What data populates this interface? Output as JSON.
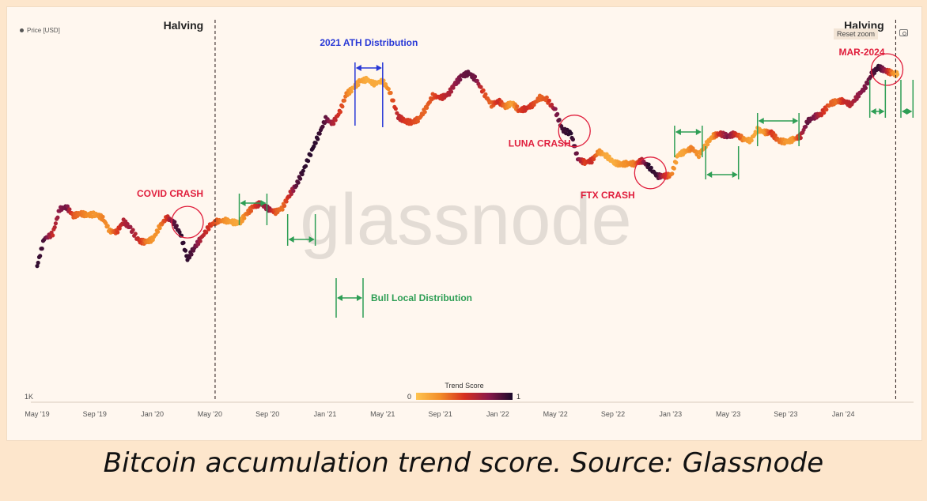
{
  "chart_data": {
    "type": "scatter",
    "series_legend": "Price [USD]",
    "y_axis_label": "1K",
    "x_ticks": [
      "May '19",
      "Sep '19",
      "Jan '20",
      "May '20",
      "Sep '20",
      "Jan '21",
      "May '21",
      "Sep '21",
      "Jan '22",
      "May '22",
      "Sep '22",
      "Jan '23",
      "May '23",
      "Sep '23",
      "Jan '24"
    ],
    "colorbar": {
      "title": "Trend Score",
      "min": 0,
      "max": 1,
      "colors": [
        "#fec44f",
        "#f28c28",
        "#d7301f",
        "#8b1a4a",
        "#1b0a2a"
      ]
    },
    "x": [
      2019.33,
      2019.37,
      2019.42,
      2019.46,
      2019.5,
      2019.54,
      2019.58,
      2019.62,
      2019.67,
      2019.71,
      2019.75,
      2019.79,
      2019.83,
      2019.87,
      2019.92,
      2019.96,
      2020.0,
      2020.04,
      2020.08,
      2020.12,
      2020.16,
      2020.2,
      2020.24,
      2020.28,
      2020.33,
      2020.37,
      2020.42,
      2020.46,
      2020.5,
      2020.54,
      2020.58,
      2020.62,
      2020.67,
      2020.71,
      2020.75,
      2020.79,
      2020.83,
      2020.87,
      2020.92,
      2020.96,
      2021.0,
      2021.04,
      2021.08,
      2021.12,
      2021.16,
      2021.2,
      2021.24,
      2021.28,
      2021.33,
      2021.37,
      2021.42,
      2021.46,
      2021.5,
      2021.54,
      2021.58,
      2021.62,
      2021.67,
      2021.71,
      2021.75,
      2021.79,
      2021.83,
      2021.87,
      2021.92,
      2021.96,
      2022.0,
      2022.04,
      2022.08,
      2022.12,
      2022.16,
      2022.2,
      2022.24,
      2022.28,
      2022.33,
      2022.37,
      2022.42,
      2022.46,
      2022.5,
      2022.54,
      2022.58,
      2022.62,
      2022.67,
      2022.71,
      2022.75,
      2022.79,
      2022.83,
      2022.87,
      2022.92,
      2022.96,
      2023.0,
      2023.04,
      2023.08,
      2023.12,
      2023.16,
      2023.2,
      2023.24,
      2023.28,
      2023.33,
      2023.37,
      2023.42,
      2023.46,
      2023.5,
      2023.54,
      2023.58,
      2023.62,
      2023.67,
      2023.71,
      2023.75,
      2023.79,
      2023.83,
      2023.87,
      2023.92,
      2023.96,
      2024.0,
      2024.04,
      2024.08,
      2024.12,
      2024.16,
      2024.2,
      2024.24,
      2024.28,
      2024.31
    ],
    "y": [
      5.3,
      7.5,
      8.0,
      11.0,
      11.3,
      10.1,
      10.4,
      10.2,
      10.3,
      9.8,
      8.3,
      8.2,
      9.4,
      8.6,
      7.3,
      7.2,
      7.5,
      8.8,
      9.9,
      9.3,
      8.0,
      5.8,
      6.7,
      7.6,
      8.9,
      9.4,
      9.5,
      9.3,
      9.2,
      10.3,
      11.3,
      11.8,
      11.0,
      10.6,
      11.2,
      13.2,
      15.0,
      18.0,
      23.4,
      28.5,
      35.0,
      33.0,
      38.0,
      48.0,
      52.0,
      57.0,
      58.0,
      55.0,
      57.0,
      50.0,
      36.0,
      34.0,
      33.5,
      35.0,
      40.0,
      47.0,
      46.0,
      48.0,
      55.0,
      61.0,
      63.0,
      58.0,
      48.0,
      42.0,
      44.0,
      41.0,
      43.0,
      39.0,
      40.0,
      42.0,
      46.0,
      45.0,
      39.0,
      30.5,
      29.0,
      21.0,
      20.0,
      20.5,
      23.0,
      22.0,
      20.0,
      19.5,
      19.8,
      19.7,
      20.5,
      19.0,
      16.8,
      16.8,
      17.0,
      22.0,
      23.0,
      24.0,
      22.0,
      25.0,
      28.0,
      29.0,
      28.0,
      29.0,
      27.0,
      26.5,
      30.5,
      29.5,
      29.3,
      26.5,
      26.0,
      27.0,
      28.0,
      34.0,
      36.0,
      37.5,
      42.5,
      44.0,
      44.0,
      42.0,
      47.0,
      52.0,
      62.0,
      68.0,
      65.0,
      63.0,
      62.0
    ],
    "trend_score": [
      0.95,
      0.9,
      0.55,
      0.75,
      0.82,
      0.38,
      0.32,
      0.25,
      0.2,
      0.28,
      0.22,
      0.45,
      0.62,
      0.7,
      0.55,
      0.3,
      0.2,
      0.25,
      0.5,
      0.85,
      0.95,
      0.95,
      0.85,
      0.62,
      0.5,
      0.38,
      0.22,
      0.15,
      0.12,
      0.3,
      0.42,
      0.62,
      0.75,
      0.38,
      0.32,
      0.55,
      0.85,
      0.95,
      0.97,
      0.95,
      0.85,
      0.65,
      0.5,
      0.3,
      0.12,
      0.18,
      0.1,
      0.12,
      0.1,
      0.28,
      0.62,
      0.48,
      0.45,
      0.38,
      0.35,
      0.42,
      0.55,
      0.62,
      0.72,
      0.82,
      0.85,
      0.8,
      0.42,
      0.35,
      0.55,
      0.3,
      0.15,
      0.45,
      0.55,
      0.45,
      0.35,
      0.4,
      0.75,
      0.92,
      0.97,
      0.8,
      0.45,
      0.55,
      0.25,
      0.12,
      0.1,
      0.2,
      0.25,
      0.3,
      0.62,
      0.97,
      0.92,
      0.55,
      0.3,
      0.12,
      0.15,
      0.3,
      0.22,
      0.15,
      0.2,
      0.55,
      0.8,
      0.55,
      0.25,
      0.15,
      0.12,
      0.2,
      0.5,
      0.35,
      0.18,
      0.2,
      0.6,
      0.85,
      0.78,
      0.55,
      0.38,
      0.32,
      0.55,
      0.6,
      0.72,
      0.78,
      0.85,
      0.95,
      0.7,
      0.28,
      0.12
    ],
    "annotations": [
      {
        "text": "Halving",
        "kind": "halving",
        "x": 2020.36
      },
      {
        "text": "Halving",
        "kind": "halving",
        "x": 2024.3
      },
      {
        "text": "COVID CRASH",
        "kind": "crash",
        "x": 2020.2,
        "y": 9.3
      },
      {
        "text": "LUNA CRASH",
        "kind": "crash",
        "x": 2022.44,
        "y": 30.0
      },
      {
        "text": "FTX CRASH",
        "kind": "crash",
        "x": 2022.88,
        "y": 17.5
      },
      {
        "text": "MAR-2024",
        "kind": "crash",
        "x": 2024.25,
        "y": 66.0
      },
      {
        "text": "2021 ATH Distribution",
        "kind": "ath",
        "x1": 2021.17,
        "x2": 2021.33
      },
      {
        "text": "Bull Local Distribution",
        "kind": "legend-bull"
      }
    ],
    "bull_local_distribution": [
      {
        "x1": 2020.5,
        "x2": 2020.66
      },
      {
        "x1": 2020.78,
        "x2": 2020.94
      },
      {
        "x1": 2023.02,
        "x2": 2023.18
      },
      {
        "x1": 2023.2,
        "x2": 2023.39
      },
      {
        "x1": 2023.5,
        "x2": 2023.74
      },
      {
        "x1": 2024.15,
        "x2": 2024.24
      },
      {
        "x1": 2024.33,
        "x2": 2024.4
      }
    ]
  },
  "ui": {
    "reset_zoom": "Reset zoom",
    "watermark": "glassnode",
    "caption": "Bitcoin accumulation trend score. Source: Glassnode"
  }
}
